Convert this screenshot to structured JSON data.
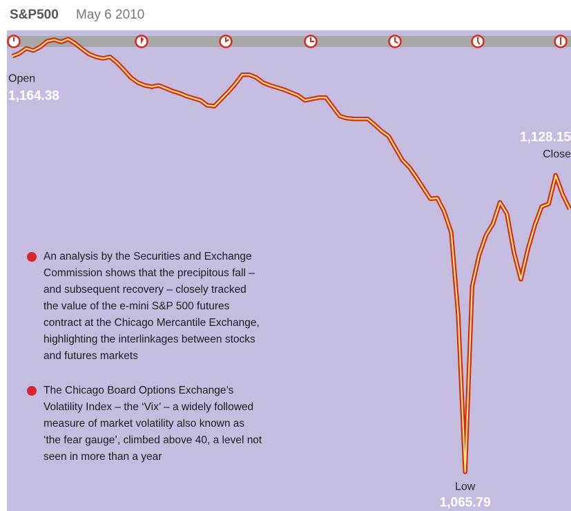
{
  "chart_data": {
    "type": "line",
    "title": "S&P500",
    "subtitle": "May 6 2010",
    "color": "#d42a1a",
    "line_core_color": "#ffe27a",
    "background_color": "#c4bde0",
    "ylim": [
      1056.5,
      1170.5
    ],
    "values": [
      1164.38,
      1165.06,
      1166.24,
      1165.73,
      1166.58,
      1167.93,
      1168.27,
      1167.76,
      1168.44,
      1167.42,
      1166.07,
      1164.89,
      1164.21,
      1163.87,
      1164.21,
      1162.86,
      1161.17,
      1159.31,
      1158.12,
      1157.45,
      1157.11,
      1157.45,
      1156.77,
      1156.1,
      1155.59,
      1154.91,
      1154.4,
      1153.9,
      1152.71,
      1152.54,
      1154.23,
      1155.93,
      1157.79,
      1159.98,
      1159.98,
      1159.31,
      1158.12,
      1157.45,
      1156.94,
      1156.43,
      1155.76,
      1155.08,
      1153.9,
      1154.23,
      1154.57,
      1154.57,
      1152.37,
      1150.17,
      1149.67,
      1149.5,
      1149.5,
      1149.5,
      1148.15,
      1146.62,
      1145.44,
      1142.56,
      1139.69,
      1138.0,
      1135.63,
      1133.09,
      1130.55,
      1130.72,
      1127.51,
      1122.6,
      1102.99,
      1065.79,
      1109.76,
      1117.2,
      1121.94,
      1124.64,
      1129.71,
      1127.01,
      1117.88,
      1111.45,
      1118.55,
      1124.3,
      1128.7,
      1129.36,
      1136.14,
      1131.57,
      1128.15
    ],
    "annotations": [
      {
        "text": "Open",
        "value": 1164.38,
        "value_label": "1,164.38"
      },
      {
        "text": "Close",
        "value": 1128.15,
        "value_label": "1,128.15"
      },
      {
        "text": "Low",
        "value": 1065.79,
        "value_label": "1,065.79"
      }
    ],
    "notes": [
      [
        "An analysis by the Securities and Exchange",
        "Commission shows that the precipitous fall –",
        "and subsequent recovery – closely tracked",
        "the value of the e-mini S&P 500 futures",
        "contract at the Chicago Mercantile Exchange,",
        "highlighting the interlinkages between stocks",
        "and futures markets"
      ],
      [
        "The Chicago Board Options Exchange’s",
        "Volatility Index – the ‘Vix’ – a widely followed",
        "measure of market volatility also known as",
        "‘the fear gauge’, climbed above 40, a level not",
        "seen in more than a year"
      ]
    ]
  }
}
